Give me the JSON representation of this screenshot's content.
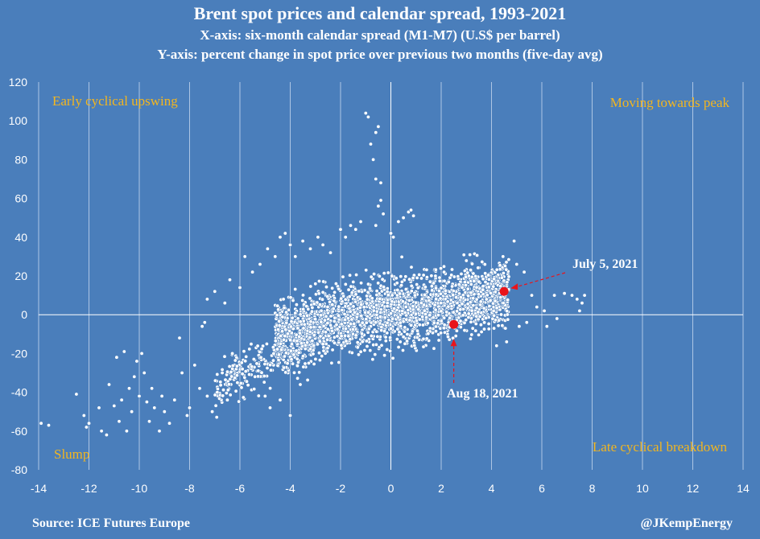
{
  "title": "Brent spot prices and calendar spread, 1993-2021",
  "subtitle_x": "X-axis: six-month calendar spread (M1-M7)  (U.S$ per barrel)",
  "subtitle_y": "Y-axis: percent change in spot price over previous two months (five-day avg)",
  "source": "Source: ICE Futures Europe",
  "credit": "@JKempEnergy",
  "colors": {
    "background": "#4a7ebb",
    "points": "#ffffff",
    "highlight": "#e8141b",
    "quadrant_label": "#f3b61f",
    "grid": "#aec6e4"
  },
  "chart_data": {
    "type": "scatter",
    "xlabel": "six-month calendar spread (M1-M7) (U.S$ per barrel)",
    "ylabel": "percent change in spot price over previous two months (five-day avg)",
    "xlim": [
      -14,
      14
    ],
    "ylim": [
      -80,
      120
    ],
    "x_ticks": [
      -14,
      -12,
      -10,
      -8,
      -6,
      -4,
      -2,
      0,
      2,
      4,
      6,
      8,
      10,
      12,
      14
    ],
    "y_ticks": [
      120,
      100,
      80,
      60,
      40,
      20,
      0,
      -20,
      -40,
      -60,
      -80
    ],
    "x_tick_labels": [
      "-14",
      "-12",
      "-10",
      "-8",
      "-6",
      "-4",
      "-2",
      "0",
      "2",
      "4",
      "6",
      "8",
      "10",
      "12",
      "14"
    ],
    "y_tick_labels": [
      "120",
      "100",
      "80",
      "60",
      "40",
      "20",
      "0",
      "-20",
      "-40",
      "-60",
      "-80"
    ],
    "grid": "vertical",
    "quadrants": {
      "top_left": "Early cyclical upswing",
      "top_right": "Moving towards peak",
      "bottom_left": "Slump",
      "bottom_right": "Late cyclical breakdown"
    },
    "highlights": [
      {
        "label": "July 5, 2021",
        "x": 4.5,
        "y": 12
      },
      {
        "label": "Aug 18, 2021",
        "x": 2.5,
        "y": -5
      }
    ],
    "cluster_points_count": 2600,
    "outlier_points": [
      [
        -13.9,
        -56
      ],
      [
        -13.6,
        -57
      ],
      [
        -12.5,
        -41
      ],
      [
        -12.2,
        -52
      ],
      [
        -12.1,
        -58
      ],
      [
        -12.0,
        -56
      ],
      [
        -11.6,
        -48
      ],
      [
        -11.5,
        -60
      ],
      [
        -11.3,
        -62
      ],
      [
        -11.2,
        -36
      ],
      [
        -11.0,
        -47
      ],
      [
        -10.9,
        -22
      ],
      [
        -10.8,
        -55
      ],
      [
        -10.7,
        -44
      ],
      [
        -10.6,
        -19
      ],
      [
        -10.5,
        -60
      ],
      [
        -10.4,
        -38
      ],
      [
        -10.3,
        -50
      ],
      [
        -10.2,
        -32
      ],
      [
        -10.1,
        -24
      ],
      [
        -10.0,
        -42
      ],
      [
        -9.9,
        -20
      ],
      [
        -9.8,
        -30
      ],
      [
        -9.7,
        -45
      ],
      [
        -9.6,
        -55
      ],
      [
        -9.5,
        -38
      ],
      [
        -9.4,
        -48
      ],
      [
        -9.2,
        -60
      ],
      [
        -9.1,
        -42
      ],
      [
        -9.0,
        -50
      ],
      [
        -8.8,
        -56
      ],
      [
        -8.6,
        -44
      ],
      [
        -8.4,
        -12
      ],
      [
        -8.3,
        -30
      ],
      [
        -8.1,
        -52
      ],
      [
        -8.0,
        -48
      ],
      [
        -7.8,
        -26
      ],
      [
        -7.6,
        -38
      ],
      [
        -7.5,
        -6
      ],
      [
        -7.3,
        -42
      ],
      [
        -7.1,
        -50
      ],
      [
        -6.9,
        -40
      ],
      [
        -6.7,
        -30
      ],
      [
        -6.5,
        -44
      ],
      [
        -6.3,
        -20
      ],
      [
        -6.1,
        -35
      ],
      [
        -5.9,
        -28
      ],
      [
        -7.4,
        -4
      ],
      [
        -7.3,
        8
      ],
      [
        -7.0,
        12
      ],
      [
        -6.6,
        6
      ],
      [
        -6.4,
        18
      ],
      [
        -6.0,
        14
      ],
      [
        -5.8,
        30
      ],
      [
        -5.5,
        22
      ],
      [
        -5.2,
        26
      ],
      [
        -4.9,
        34
      ],
      [
        -4.6,
        30
      ],
      [
        -4.4,
        40
      ],
      [
        -4.2,
        42
      ],
      [
        -4.0,
        36
      ],
      [
        -3.8,
        30
      ],
      [
        -3.5,
        38
      ],
      [
        -3.2,
        34
      ],
      [
        -2.9,
        40
      ],
      [
        -2.7,
        36
      ],
      [
        -2.4,
        32
      ],
      [
        -2.0,
        44
      ],
      [
        -1.8,
        40
      ],
      [
        -1.6,
        46
      ],
      [
        -1.4,
        44
      ],
      [
        -1.2,
        48
      ],
      [
        -1.0,
        104
      ],
      [
        -0.9,
        102
      ],
      [
        -0.8,
        88
      ],
      [
        -0.6,
        94
      ],
      [
        -0.5,
        97
      ],
      [
        -0.7,
        80
      ],
      [
        -0.6,
        70
      ],
      [
        -0.4,
        68
      ],
      [
        -0.5,
        56
      ],
      [
        -0.4,
        59
      ],
      [
        -0.3,
        52
      ],
      [
        -0.6,
        46
      ],
      [
        0.0,
        42
      ],
      [
        0.1,
        40
      ],
      [
        0.3,
        48
      ],
      [
        0.5,
        50
      ],
      [
        0.7,
        53
      ],
      [
        0.8,
        54
      ],
      [
        0.9,
        51
      ],
      [
        4.9,
        38
      ],
      [
        5.0,
        26
      ],
      [
        5.3,
        22
      ],
      [
        5.6,
        10
      ],
      [
        5.8,
        4
      ],
      [
        6.1,
        2
      ],
      [
        6.2,
        -6
      ],
      [
        6.5,
        10
      ],
      [
        6.9,
        11
      ],
      [
        7.2,
        10
      ],
      [
        7.4,
        8
      ],
      [
        7.6,
        6
      ],
      [
        7.7,
        10
      ],
      [
        7.5,
        2
      ],
      [
        5.1,
        -6
      ],
      [
        5.4,
        -4
      ],
      [
        4.6,
        -14
      ],
      [
        4.2,
        -16
      ],
      [
        6.6,
        -2
      ],
      [
        -4.0,
        -52
      ],
      [
        -4.4,
        -44
      ],
      [
        -5.0,
        -42
      ],
      [
        -5.4,
        -32
      ],
      [
        -3.6,
        -36
      ],
      [
        -4.8,
        -48
      ]
    ],
    "annotations": [
      "July 5, 2021",
      "Aug 18, 2021"
    ]
  }
}
